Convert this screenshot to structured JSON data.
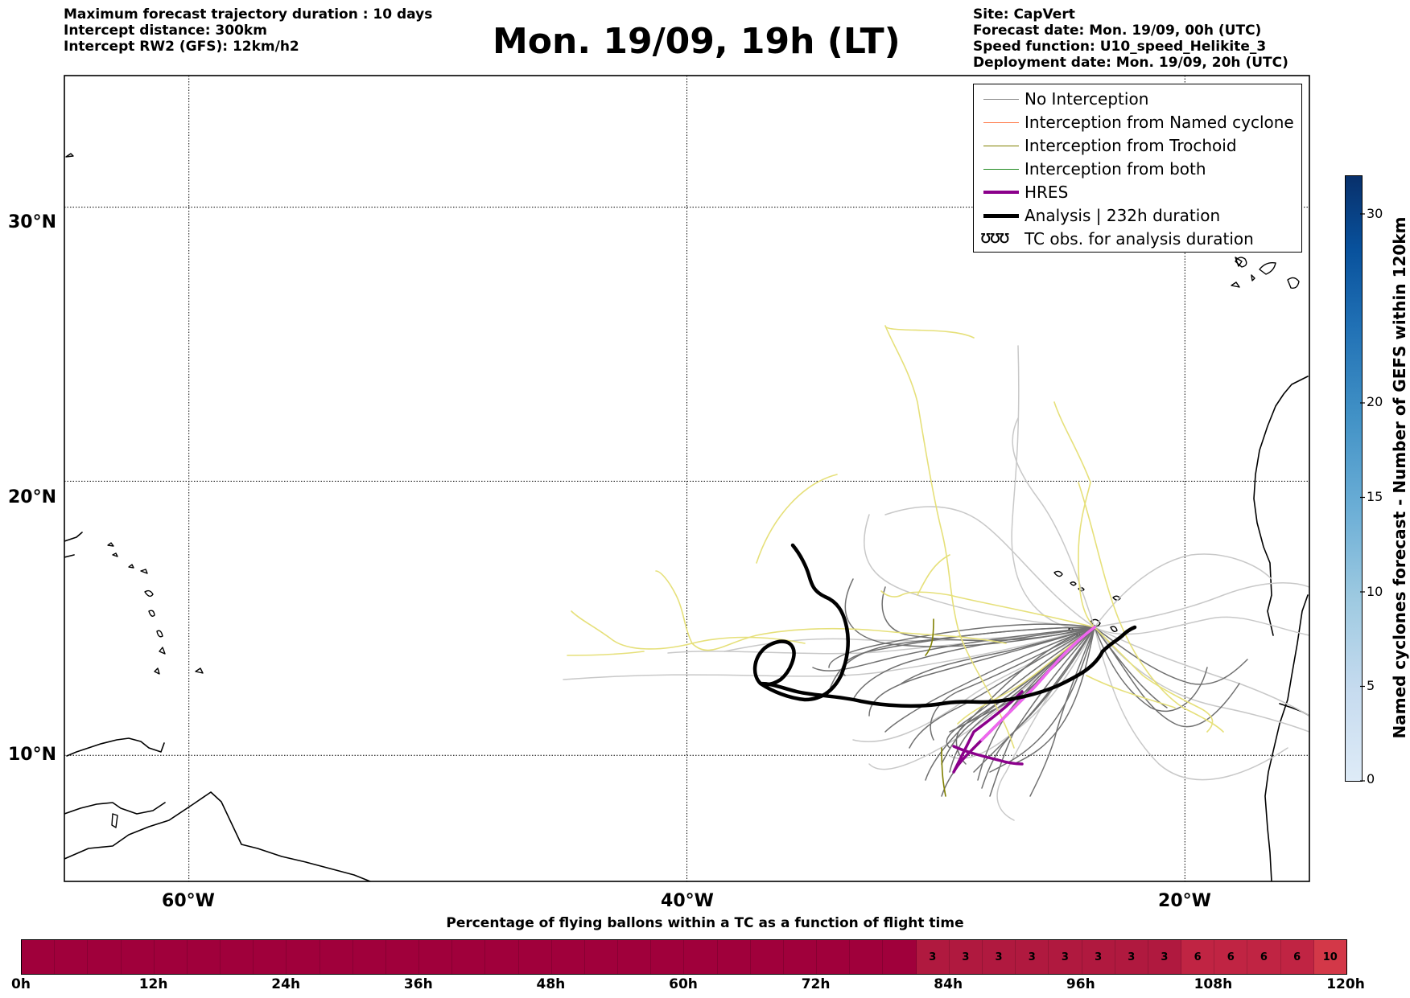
{
  "header": {
    "left_lines": [
      "Maximum forecast trajectory duration : 10 days",
      "Intercept distance: 300km",
      "Intercept RW2 (GFS):  12km/h2"
    ],
    "title": "Mon. 19/09, 19h (LT)",
    "right_lines": [
      "Site: CapVert",
      "Forecast date: Mon. 19/09, 00h (UTC)",
      "Speed function: U10_speed_Helikite_3",
      "Deployment date: Mon. 19/09, 20h (UTC)"
    ]
  },
  "map": {
    "lon_range": [
      -65,
      -15
    ],
    "lat_range": [
      5.4,
      34.8
    ],
    "lat_labels": [
      "30°N",
      "20°N",
      "10°N"
    ],
    "lat_values": [
      30,
      20,
      10
    ],
    "lon_labels": [
      "60°W",
      "40°W",
      "20°W"
    ],
    "lon_values": [
      -60,
      -40,
      -20
    ],
    "grid": true
  },
  "legend": {
    "items": [
      {
        "label": "No Interception",
        "color": "#888888",
        "width": 1.5
      },
      {
        "label": "Interception from Named cyclone",
        "color": "#ff7f50",
        "width": 1.5
      },
      {
        "label": "Interception from Trochoid",
        "color": "#808000",
        "width": 1.5
      },
      {
        "label": "Interception from both",
        "color": "#228b22",
        "width": 1.5
      },
      {
        "label": "HRES",
        "color": "#8b008b",
        "width": 4
      },
      {
        "label": "Analysis | 232h duration",
        "color": "#000000",
        "width": 5
      },
      {
        "label": "TC obs. for analysis duration",
        "color": "#000000",
        "width": 0
      }
    ],
    "tc_symbol": "ʊʊʊ"
  },
  "colorbar": {
    "label": "Named cyclones forecast - Number of GEFS within 120km",
    "min": 0,
    "max": 32,
    "ticks": [
      "0",
      "5",
      "10",
      "15",
      "20",
      "30"
    ],
    "tick_values": [
      0,
      5,
      10,
      15,
      20,
      30
    ],
    "color_low": "#deebf7",
    "color_high": "#08306b"
  },
  "timeline": {
    "title": "Percentage of flying ballons within a TC as a function of flight time",
    "labels": [
      "0h",
      "12h",
      "24h",
      "36h",
      "48h",
      "60h",
      "72h",
      "84h",
      "96h",
      "108h",
      "120h"
    ],
    "segments": 40,
    "values": [
      "",
      "",
      "",
      "",
      "",
      "",
      "",
      "",
      "",
      "",
      "",
      "",
      "",
      "",
      "",
      "",
      "",
      "",
      "",
      "",
      "",
      "",
      "",
      "",
      "",
      "",
      "",
      "3",
      "3",
      "3",
      "3",
      "3",
      "3",
      "3",
      "3",
      "6",
      "6",
      "6",
      "6",
      "10"
    ],
    "colors": {
      "empty": "#a0003b",
      "3": "#b0193f",
      "6": "#c02443",
      "10": "#d33848"
    }
  }
}
